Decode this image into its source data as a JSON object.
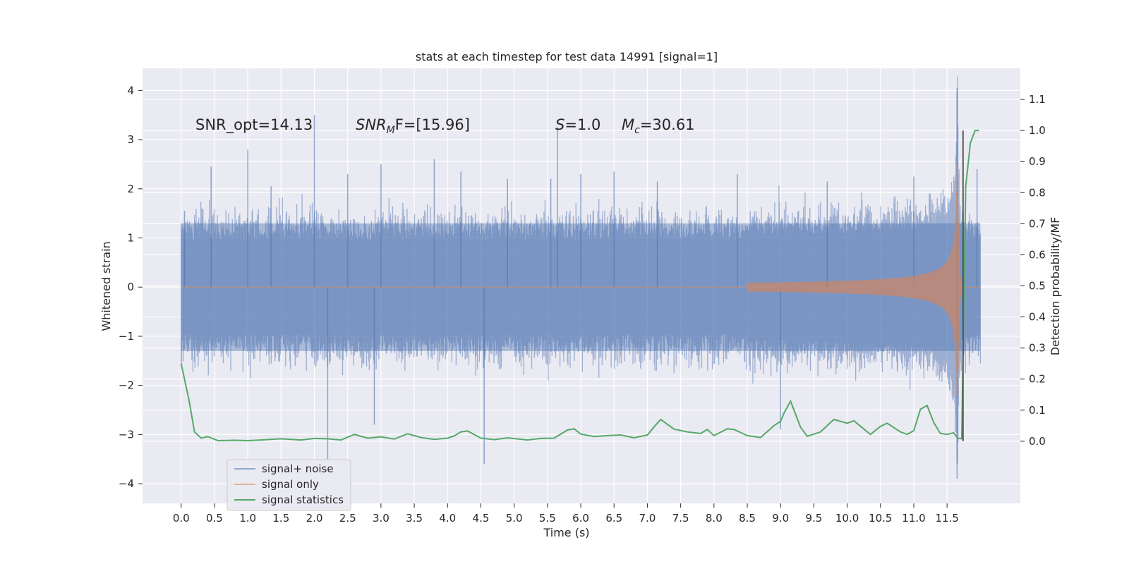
{
  "chart_data": {
    "type": "line",
    "title": "stats at each timestep for test data 14991 [signal=1]",
    "xlabel": "Time (s)",
    "ylabel_left": "Whitened strain",
    "ylabel_right": "Detection probability/MF",
    "xlim": [
      -0.58,
      12.6
    ],
    "ylim_left": [
      -4.4,
      4.45
    ],
    "ylim_right": [
      -0.2,
      1.2
    ],
    "x_ticks": [
      0.0,
      0.5,
      1.0,
      1.5,
      2.0,
      2.5,
      3.0,
      3.5,
      4.0,
      4.5,
      5.0,
      5.5,
      6.0,
      6.5,
      7.0,
      7.5,
      8.0,
      8.5,
      9.0,
      9.5,
      10.0,
      10.5,
      11.0,
      11.5
    ],
    "x_tick_labels": [
      "0.0",
      "0.5",
      "1.0",
      "1.5",
      "2.0",
      "2.5",
      "3.0",
      "3.5",
      "4.0",
      "4.5",
      "5.0",
      "5.5",
      "6.0",
      "6.5",
      "7.0",
      "7.5",
      "8.0",
      "8.5",
      "9.0",
      "9.5",
      "10.0",
      "10.5",
      "11.0",
      "11.5"
    ],
    "y_left_ticks": [
      -4,
      -3,
      -2,
      -1,
      0,
      1,
      2,
      3,
      4
    ],
    "y_left_tick_labels": [
      "−4",
      "−3",
      "−2",
      "−1",
      "0",
      "1",
      "2",
      "3",
      "4"
    ],
    "y_right_ticks": [
      0.0,
      0.1,
      0.2,
      0.3,
      0.4,
      0.5,
      0.6,
      0.7,
      0.8,
      0.9,
      1.0,
      1.1
    ],
    "y_right_tick_labels": [
      "0.0",
      "0.1",
      "0.2",
      "0.3",
      "0.4",
      "0.5",
      "0.6",
      "0.7",
      "0.8",
      "0.9",
      "1.0",
      "1.1"
    ],
    "grid": true,
    "legend_position": "lower-left",
    "annotations": {
      "snr_opt": "SNR_opt=14.13",
      "snr_mf_main": "SNR",
      "snr_mf_sub": "M",
      "snr_mf_tail": "F=[15.96]",
      "s_main": "S",
      "s_tail": "=1.0",
      "mc_main": "M",
      "mc_sub": "c",
      "mc_tail": "=30.61"
    },
    "series": [
      {
        "name": "signal+ noise",
        "axis": "left",
        "color": "#4c72b0",
        "description_of_extent": "dense white noise, typical envelope",
        "envelope": [
          [
            0.0,
            -1.3,
            1.3
          ],
          [
            12.0,
            -1.3,
            1.3
          ]
        ],
        "spikes": [
          [
            0.05,
            1.55
          ],
          [
            0.45,
            2.45
          ],
          [
            1.0,
            2.8
          ],
          [
            1.35,
            2.05
          ],
          [
            2.0,
            3.5
          ],
          [
            2.2,
            -3.5
          ],
          [
            2.5,
            2.3
          ],
          [
            2.9,
            -2.8
          ],
          [
            3.0,
            2.5
          ],
          [
            3.8,
            2.6
          ],
          [
            4.2,
            2.35
          ],
          [
            4.55,
            -3.6
          ],
          [
            4.9,
            2.2
          ],
          [
            5.55,
            2.2
          ],
          [
            5.65,
            3.25
          ],
          [
            6.0,
            2.3
          ],
          [
            6.5,
            2.35
          ],
          [
            7.15,
            2.15
          ],
          [
            8.35,
            2.3
          ],
          [
            9.0,
            -2.9
          ],
          [
            9.7,
            2.15
          ],
          [
            11.0,
            2.25
          ],
          [
            11.65,
            4.05
          ],
          [
            11.65,
            -3.9
          ],
          [
            11.95,
            2.4
          ]
        ]
      },
      {
        "name": "signal only",
        "axis": "left",
        "color": "#dd8452",
        "chirp_start": 8.5,
        "chirp_peak_time": 11.66,
        "chirp_peak_amplitude": 2.5
      },
      {
        "name": "signal statistics",
        "axis": "right",
        "color": "#55a868",
        "x": [
          0.0,
          0.05,
          0.12,
          0.2,
          0.3,
          0.4,
          0.55,
          0.8,
          1.0,
          1.2,
          1.5,
          1.8,
          2.0,
          2.2,
          2.4,
          2.6,
          2.8,
          3.0,
          3.2,
          3.4,
          3.6,
          3.8,
          4.0,
          4.1,
          4.2,
          4.3,
          4.5,
          4.7,
          4.9,
          5.2,
          5.4,
          5.6,
          5.8,
          5.9,
          6.0,
          6.2,
          6.4,
          6.6,
          6.8,
          7.0,
          7.1,
          7.2,
          7.4,
          7.6,
          7.8,
          7.9,
          8.0,
          8.2,
          8.3,
          8.5,
          8.7,
          8.9,
          9.0,
          9.05,
          9.15,
          9.3,
          9.4,
          9.6,
          9.8,
          10.0,
          10.1,
          10.2,
          10.35,
          10.5,
          10.6,
          10.8,
          10.9,
          11.0,
          11.1,
          11.2,
          11.3,
          11.4,
          11.5,
          11.6,
          11.66,
          11.72,
          11.78,
          11.85,
          11.92,
          11.98
        ],
        "y": [
          0.25,
          0.2,
          0.13,
          0.03,
          0.01,
          0.015,
          0.002,
          0.003,
          0.002,
          0.004,
          0.008,
          0.004,
          0.009,
          0.008,
          0.004,
          0.022,
          0.01,
          0.014,
          0.007,
          0.024,
          0.012,
          0.006,
          0.01,
          0.017,
          0.03,
          0.033,
          0.01,
          0.005,
          0.011,
          0.004,
          0.009,
          0.01,
          0.036,
          0.04,
          0.023,
          0.015,
          0.018,
          0.02,
          0.011,
          0.02,
          0.046,
          0.07,
          0.039,
          0.03,
          0.025,
          0.038,
          0.018,
          0.04,
          0.038,
          0.018,
          0.012,
          0.05,
          0.064,
          0.09,
          0.129,
          0.045,
          0.016,
          0.03,
          0.07,
          0.058,
          0.066,
          0.048,
          0.022,
          0.048,
          0.058,
          0.03,
          0.022,
          0.034,
          0.103,
          0.115,
          0.06,
          0.025,
          0.022,
          0.027,
          0.01,
          0.008,
          0.82,
          0.96,
          1.0,
          1.0
        ]
      }
    ],
    "marker_line": {
      "color": "#4d4d4d",
      "x": 11.74,
      "y_right_range": [
        0.0,
        1.0
      ]
    }
  }
}
